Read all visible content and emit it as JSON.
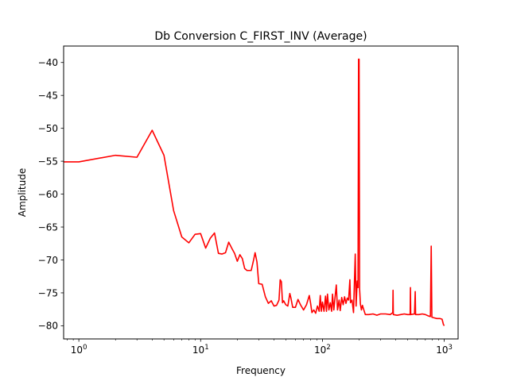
{
  "chart_data": {
    "type": "line",
    "title": "Db Conversion C_FIRST_INV (Average)",
    "xlabel": "Frequency",
    "ylabel": "Amplitude",
    "x_scale": "log",
    "xlim": [
      0.75,
      1300
    ],
    "ylim": [
      -82,
      -37.5
    ],
    "grid": false,
    "line_color": "#ff0000",
    "x_ticks": [
      {
        "value": 1,
        "base": "10",
        "exp": "0"
      },
      {
        "value": 10,
        "base": "10",
        "exp": "1"
      },
      {
        "value": 100,
        "base": "10",
        "exp": "2"
      },
      {
        "value": 1000,
        "base": "10",
        "exp": "3"
      }
    ],
    "y_ticks": [
      {
        "value": -40,
        "label": "−40"
      },
      {
        "value": -45,
        "label": "−45"
      },
      {
        "value": -50,
        "label": "−50"
      },
      {
        "value": -55,
        "label": "−55"
      },
      {
        "value": -60,
        "label": "−60"
      },
      {
        "value": -65,
        "label": "−65"
      },
      {
        "value": -70,
        "label": "−70"
      },
      {
        "value": -75,
        "label": "−75"
      },
      {
        "value": -80,
        "label": "−80"
      }
    ],
    "series": [
      {
        "points": [
          [
            0.75,
            -55.1
          ],
          [
            1,
            -55.1
          ],
          [
            2,
            -54.1
          ],
          [
            3,
            -54.4
          ],
          [
            4,
            -50.3
          ],
          [
            5,
            -54.1
          ],
          [
            6,
            -62.5
          ],
          [
            7,
            -66.5
          ],
          [
            8,
            -67.4
          ],
          [
            9,
            -66.1
          ],
          [
            10,
            -66.0
          ],
          [
            11,
            -68.2
          ],
          [
            12,
            -66.7
          ],
          [
            13,
            -65.9
          ],
          [
            14,
            -69.0
          ],
          [
            15,
            -69.1
          ],
          [
            16,
            -68.9
          ],
          [
            17,
            -67.3
          ],
          [
            18,
            -68.2
          ],
          [
            19,
            -69.0
          ],
          [
            20,
            -70.2
          ],
          [
            21,
            -69.2
          ],
          [
            22,
            -69.8
          ],
          [
            23,
            -71.3
          ],
          [
            24,
            -71.6
          ],
          [
            25,
            -71.6
          ],
          [
            26,
            -71.6
          ],
          [
            27,
            -70.3
          ],
          [
            28,
            -68.9
          ],
          [
            29,
            -70.3
          ],
          [
            30,
            -73.6
          ],
          [
            32,
            -73.7
          ],
          [
            34,
            -75.6
          ],
          [
            36,
            -76.6
          ],
          [
            38,
            -76.2
          ],
          [
            40,
            -77.0
          ],
          [
            42,
            -76.9
          ],
          [
            44,
            -76.1
          ],
          [
            45,
            -73.0
          ],
          [
            46,
            -73.3
          ],
          [
            47,
            -76.5
          ],
          [
            48,
            -76.2
          ],
          [
            50,
            -76.8
          ],
          [
            52,
            -77.0
          ],
          [
            54,
            -75.1
          ],
          [
            55,
            -75.7
          ],
          [
            57,
            -77.2
          ],
          [
            60,
            -77.2
          ],
          [
            63,
            -76.0
          ],
          [
            66,
            -76.8
          ],
          [
            70,
            -77.6
          ],
          [
            74,
            -76.8
          ],
          [
            78,
            -75.4
          ],
          [
            80,
            -76.6
          ],
          [
            82,
            -78.0
          ],
          [
            85,
            -77.6
          ],
          [
            88,
            -78.1
          ],
          [
            91,
            -77.0
          ],
          [
            94,
            -77.8
          ],
          [
            96,
            -75.4
          ],
          [
            98,
            -77.8
          ],
          [
            100,
            -76.4
          ],
          [
            103,
            -77.8
          ],
          [
            106,
            -75.5
          ],
          [
            108,
            -77.8
          ],
          [
            110,
            -75.2
          ],
          [
            113,
            -77.6
          ],
          [
            116,
            -76.5
          ],
          [
            119,
            -77.8
          ],
          [
            121,
            -75.2
          ],
          [
            124,
            -77.6
          ],
          [
            128,
            -75.0
          ],
          [
            130,
            -73.8
          ],
          [
            133,
            -77.6
          ],
          [
            137,
            -76.1
          ],
          [
            140,
            -77.7
          ],
          [
            144,
            -75.7
          ],
          [
            148,
            -76.8
          ],
          [
            152,
            -75.6
          ],
          [
            156,
            -76.6
          ],
          [
            160,
            -75.8
          ],
          [
            164,
            -76.1
          ],
          [
            168,
            -73.0
          ],
          [
            170,
            -76.5
          ],
          [
            175,
            -76.1
          ],
          [
            180,
            -78.0
          ],
          [
            186,
            -69.1
          ],
          [
            189,
            -77.0
          ],
          [
            193,
            -73.2
          ],
          [
            196,
            -74.2
          ],
          [
            198,
            -39.5
          ],
          [
            200,
            -39.5
          ],
          [
            202,
            -74.4
          ],
          [
            205,
            -76.7
          ],
          [
            209,
            -77.6
          ],
          [
            213,
            -76.9
          ],
          [
            218,
            -77.5
          ],
          [
            225,
            -78.3
          ],
          [
            240,
            -78.3
          ],
          [
            260,
            -78.2
          ],
          [
            280,
            -78.4
          ],
          [
            300,
            -78.2
          ],
          [
            330,
            -78.2
          ],
          [
            360,
            -78.3
          ],
          [
            378,
            -78.0
          ],
          [
            380,
            -74.6
          ],
          [
            382,
            -78.3
          ],
          [
            410,
            -78.4
          ],
          [
            440,
            -78.3
          ],
          [
            470,
            -78.2
          ],
          [
            500,
            -78.3
          ],
          [
            525,
            -78.3
          ],
          [
            528,
            -74.2
          ],
          [
            531,
            -78.3
          ],
          [
            570,
            -78.2
          ],
          [
            578,
            -74.8
          ],
          [
            582,
            -78.3
          ],
          [
            620,
            -78.3
          ],
          [
            660,
            -78.2
          ],
          [
            700,
            -78.3
          ],
          [
            740,
            -78.5
          ],
          [
            770,
            -78.6
          ],
          [
            782,
            -67.9
          ],
          [
            792,
            -78.7
          ],
          [
            830,
            -78.8
          ],
          [
            870,
            -78.9
          ],
          [
            920,
            -78.9
          ],
          [
            960,
            -79.0
          ],
          [
            985,
            -79.8
          ],
          [
            1000,
            -80.0
          ]
        ]
      }
    ]
  }
}
